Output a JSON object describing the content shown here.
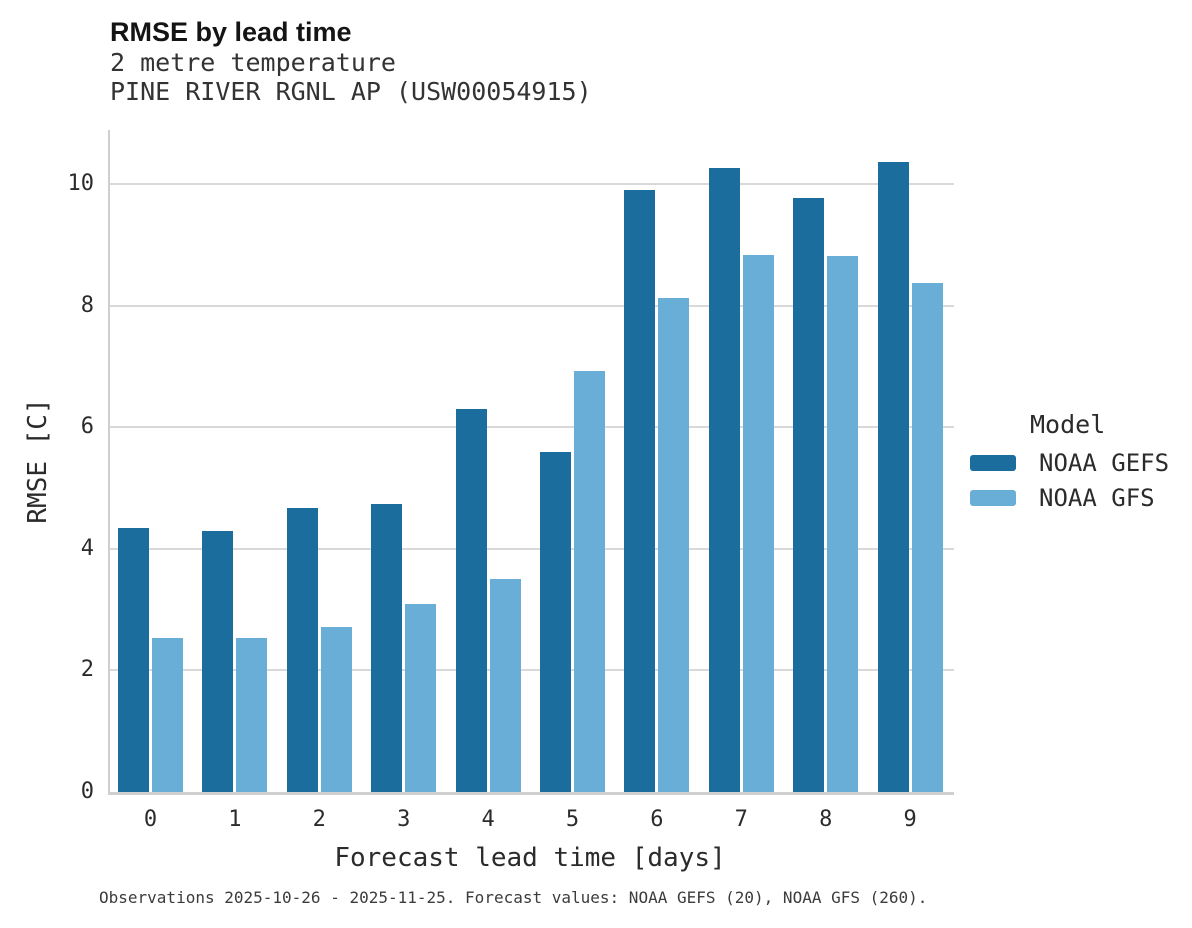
{
  "title": "RMSE by lead time",
  "subtitle_lines": [
    "2 metre temperature",
    "PINE RIVER RGNL AP (USW00054915)"
  ],
  "footer": "Observations 2025-10-26 - 2025-11-25. Forecast values: NOAA GEFS (20), NOAA GFS (260).",
  "legend": {
    "title": "Model",
    "entries": [
      {
        "label": "NOAA GEFS",
        "color": "#1b6d9e"
      },
      {
        "label": "NOAA GFS",
        "color": "#69aed6"
      }
    ]
  },
  "colors": {
    "gefs_dark_blue": "#1b6d9e",
    "gfs_light_blue": "#69aed6",
    "gridline_gray": "#d9d9d9",
    "spine_gray": "#cfcfcf"
  },
  "chart_data": {
    "type": "bar",
    "title": "RMSE by lead time",
    "categories": [
      "0",
      "1",
      "2",
      "3",
      "4",
      "5",
      "6",
      "7",
      "8",
      "9"
    ],
    "series": [
      {
        "name": "NOAA GEFS",
        "color": "#1b6d9e",
        "values": [
          4.35,
          4.3,
          4.67,
          4.74,
          6.3,
          5.6,
          9.9,
          10.27,
          9.77,
          10.36
        ]
      },
      {
        "name": "NOAA GFS",
        "color": "#69aed6",
        "values": [
          2.53,
          2.53,
          2.71,
          3.1,
          3.51,
          6.92,
          8.12,
          8.84,
          8.82,
          8.38
        ]
      }
    ],
    "xlabel": "Forecast lead time [days]",
    "ylabel": "RMSE [C]",
    "ylim": [
      0,
      10.89
    ],
    "yticks": [
      0,
      2,
      4,
      6,
      8,
      10
    ],
    "grid": "horizontal",
    "legend_position": "right-center"
  }
}
